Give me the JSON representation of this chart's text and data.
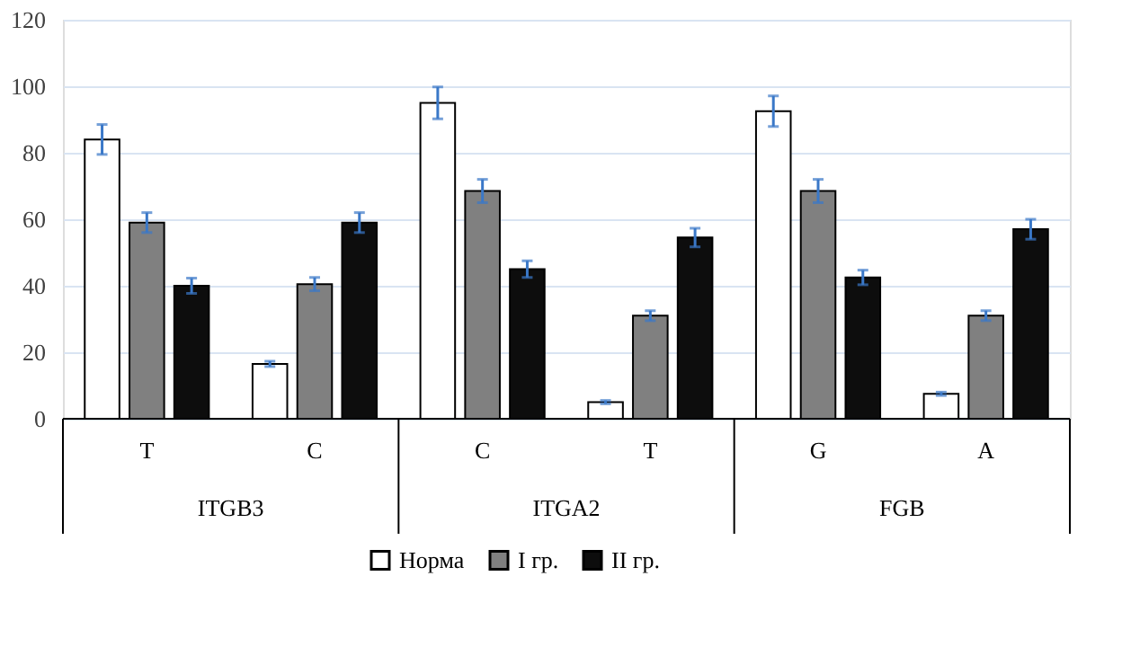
{
  "chart_data": {
    "type": "bar",
    "categories": [
      "T",
      "C",
      "C",
      "T",
      "G",
      "A"
    ],
    "annotations": [
      "ITGB3",
      "ITGA2",
      "FGB"
    ],
    "series": [
      {
        "name": "Норма",
        "color": "#ffffff",
        "values": [
          84,
          16.5,
          95,
          5,
          92.5,
          7.5
        ],
        "errors": [
          4.5,
          0.8,
          4.8,
          0.5,
          4.6,
          0.5
        ]
      },
      {
        "name": "I гр.",
        "color": "#808080",
        "values": [
          59,
          40.5,
          68.5,
          31,
          68.5,
          31
        ],
        "errors": [
          3,
          2,
          3.5,
          1.5,
          3.5,
          1.5
        ]
      },
      {
        "name": "II гр.",
        "color": "#0d0d0d",
        "values": [
          40,
          59,
          45,
          54.5,
          42.5,
          57
        ],
        "errors": [
          2.3,
          3,
          2.5,
          2.8,
          2.2,
          3
        ]
      }
    ],
    "ylim": [
      0,
      120
    ],
    "yticks": [
      0,
      20,
      40,
      60,
      80,
      100,
      120
    ],
    "grid": "y",
    "legend": "bottom"
  }
}
